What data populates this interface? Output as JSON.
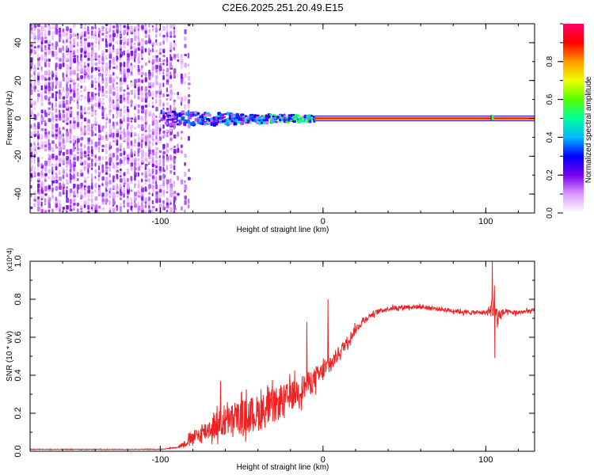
{
  "title": "C2E6.2025.251.20.49.E15",
  "chart_data": [
    {
      "type": "heatmap",
      "xlabel": "Height of straight line (km)",
      "ylabel": "Frequency (Hz)",
      "xlim": [
        -180,
        130
      ],
      "ylim": [
        -50,
        50
      ],
      "x_ticks": [
        -100,
        0,
        100
      ],
      "x_tick_labels": [
        "-100",
        "0",
        "100"
      ],
      "y_ticks": [
        -40,
        -20,
        0,
        20,
        40
      ],
      "y_tick_labels": [
        "-40",
        "-20",
        "0",
        "20",
        "40"
      ],
      "colorbar": {
        "label": "Normalized spectral amplitude",
        "range": [
          0,
          1
        ],
        "ticks": [
          0.0,
          0.2,
          0.4,
          0.6,
          0.8
        ],
        "tick_labels": [
          "0.0",
          "0.2",
          "0.4",
          "0.6",
          "0.8"
        ],
        "stops": [
          "#ffffff",
          "#dd99ff",
          "#7700ee",
          "#0000ff",
          "#00bbff",
          "#00ff99",
          "#55ff00",
          "#eeff00",
          "#ff9900",
          "#ff0000",
          "#ff0066"
        ]
      },
      "regions": [
        {
          "name": "noise",
          "x_range": [
            -180,
            -82
          ],
          "freq_range": [
            -50,
            50
          ],
          "amplitude": [
            0.0,
            0.2
          ]
        },
        {
          "name": "signal_band_scattered",
          "x_range": [
            -100,
            -5
          ],
          "freq_center": 0,
          "half_width_start": 4,
          "half_width_end": 1.5,
          "amplitude": [
            0.1,
            0.7
          ]
        },
        {
          "name": "signal_line_steady",
          "x_range": [
            -5,
            130
          ],
          "freq_center": 0,
          "half_width": 1.5,
          "amplitude": 0.95
        }
      ]
    },
    {
      "type": "line",
      "xlabel": "Height of straight line (km)",
      "ylabel": "SNR (10 * v/v)",
      "y_multiplier": "(x10^4)",
      "xlim": [
        -180,
        130
      ],
      "ylim": [
        0,
        1.0
      ],
      "x_ticks": [
        -100,
        0,
        100
      ],
      "x_tick_labels": [
        "-100",
        "0",
        "100"
      ],
      "y_ticks": [
        0.0,
        0.2,
        0.4,
        0.6,
        0.8,
        1.0
      ],
      "y_tick_labels": [
        "0.0",
        "0.2",
        "0.4",
        "0.6",
        "0.8",
        "1.0"
      ],
      "series": [
        {
          "name": "SNR",
          "color": "#ee2222",
          "x": [
            -180,
            -150,
            -120,
            -100,
            -90,
            -85,
            -80,
            -75,
            -70,
            -65,
            -60,
            -55,
            -50,
            -45,
            -40,
            -35,
            -30,
            -25,
            -20,
            -15,
            -10,
            -5,
            0,
            5,
            10,
            15,
            20,
            25,
            30,
            35,
            40,
            50,
            60,
            70,
            80,
            90,
            100,
            103,
            105,
            107,
            110,
            120,
            130
          ],
          "values": [
            0.01,
            0.01,
            0.01,
            0.01,
            0.02,
            0.04,
            0.07,
            0.09,
            0.12,
            0.14,
            0.15,
            0.17,
            0.18,
            0.19,
            0.2,
            0.22,
            0.24,
            0.26,
            0.29,
            0.32,
            0.35,
            0.38,
            0.42,
            0.46,
            0.52,
            0.58,
            0.64,
            0.69,
            0.72,
            0.74,
            0.75,
            0.76,
            0.76,
            0.75,
            0.74,
            0.73,
            0.73,
            0.74,
            0.8,
            0.7,
            0.73,
            0.73,
            0.74
          ],
          "noise_amplitude": [
            0.003,
            0.003,
            0.003,
            0.003,
            0.005,
            0.03,
            0.06,
            0.08,
            0.1,
            0.12,
            0.13,
            0.14,
            0.15,
            0.16,
            0.16,
            0.16,
            0.15,
            0.14,
            0.13,
            0.12,
            0.11,
            0.1,
            0.09,
            0.08,
            0.06,
            0.05,
            0.04,
            0.03,
            0.025,
            0.02,
            0.02,
            0.02,
            0.02,
            0.02,
            0.02,
            0.02,
            0.02,
            0.05,
            0.2,
            0.12,
            0.03,
            0.02,
            0.02
          ],
          "spikes": [
            {
              "x": -63,
              "y": 0.37
            },
            {
              "x": -10,
              "y": 0.68
            },
            {
              "x": 3,
              "y": 0.8
            },
            {
              "x": 104,
              "y": 1.0
            },
            {
              "x": 105.5,
              "y": 0.49
            }
          ]
        }
      ]
    }
  ]
}
